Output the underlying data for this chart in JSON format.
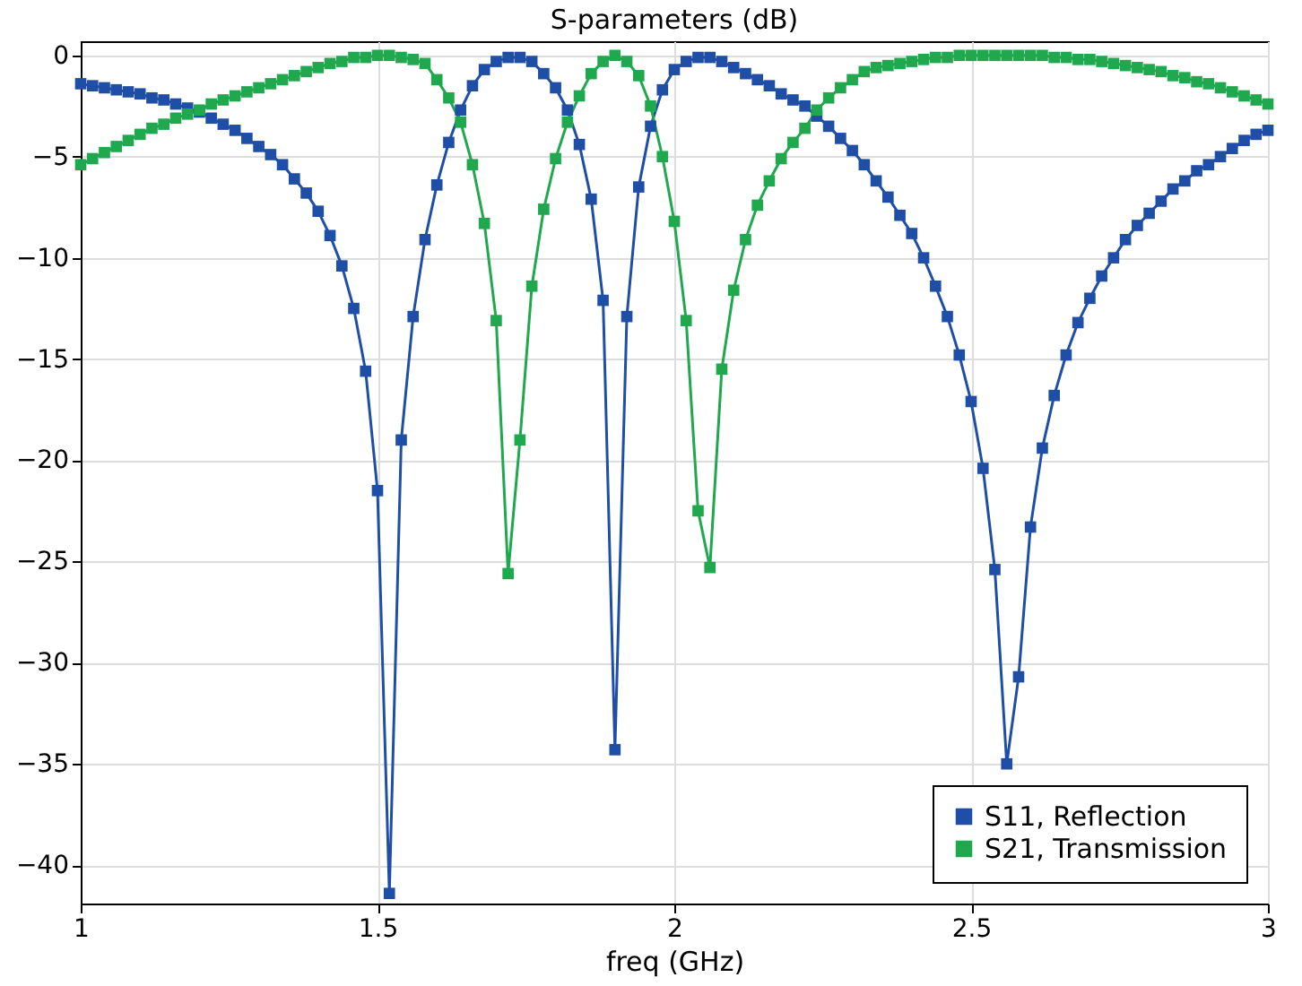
{
  "chart_data": {
    "type": "line",
    "title": "S-parameters (dB)",
    "xlabel": "freq (GHz)",
    "x": [
      1.0,
      1.02,
      1.04,
      1.06,
      1.08,
      1.1,
      1.12,
      1.14,
      1.16,
      1.18,
      1.2,
      1.22,
      1.24,
      1.26,
      1.28,
      1.3,
      1.32,
      1.34,
      1.36,
      1.38,
      1.4,
      1.42,
      1.44,
      1.46,
      1.48,
      1.5,
      1.52,
      1.54,
      1.56,
      1.58,
      1.6,
      1.62,
      1.64,
      1.66,
      1.68,
      1.7,
      1.72,
      1.74,
      1.76,
      1.78,
      1.8,
      1.82,
      1.84,
      1.86,
      1.88,
      1.9,
      1.92,
      1.94,
      1.96,
      1.98,
      2.0,
      2.02,
      2.04,
      2.06,
      2.08,
      2.1,
      2.12,
      2.14,
      2.16,
      2.18,
      2.2,
      2.22,
      2.24,
      2.26,
      2.28,
      2.3,
      2.32,
      2.34,
      2.36,
      2.38,
      2.4,
      2.42,
      2.44,
      2.46,
      2.48,
      2.5,
      2.52,
      2.54,
      2.56,
      2.58,
      2.6,
      2.62,
      2.64,
      2.66,
      2.68,
      2.7,
      2.72,
      2.74,
      2.76,
      2.78,
      2.8,
      2.82,
      2.84,
      2.86,
      2.88,
      2.9,
      2.92,
      2.94,
      2.96,
      2.98,
      3.0
    ],
    "series": [
      {
        "name": "S11, Reflection",
        "color": "#1f4ea6",
        "values": [
          -1.4,
          -1.5,
          -1.6,
          -1.7,
          -1.8,
          -1.9,
          -2.1,
          -2.2,
          -2.4,
          -2.6,
          -2.8,
          -3.1,
          -3.4,
          -3.7,
          -4.1,
          -4.5,
          -4.9,
          -5.4,
          -6.1,
          -6.8,
          -7.7,
          -8.9,
          -10.4,
          -12.5,
          -15.6,
          -21.5,
          -41.4,
          -19.0,
          -12.9,
          -9.1,
          -6.4,
          -4.3,
          -2.7,
          -1.5,
          -0.7,
          -0.3,
          -0.1,
          -0.1,
          -0.3,
          -0.9,
          -1.6,
          -2.7,
          -4.4,
          -7.1,
          -12.1,
          -34.3,
          -12.9,
          -6.5,
          -3.5,
          -1.7,
          -0.7,
          -0.3,
          -0.1,
          -0.1,
          -0.3,
          -0.6,
          -0.9,
          -1.2,
          -1.5,
          -1.9,
          -2.2,
          -2.5,
          -3.0,
          -3.5,
          -4.1,
          -4.7,
          -5.4,
          -6.2,
          -7.0,
          -7.9,
          -8.8,
          -10.0,
          -11.4,
          -12.9,
          -14.8,
          -17.1,
          -20.4,
          -25.4,
          -35.0,
          -30.7,
          -23.3,
          -19.4,
          -16.8,
          -14.8,
          -13.2,
          -12.0,
          -10.9,
          -10.0,
          -9.1,
          -8.4,
          -7.8,
          -7.2,
          -6.6,
          -6.2,
          -5.7,
          -5.4,
          -5.0,
          -4.6,
          -4.2,
          -3.9,
          -3.7
        ]
      },
      {
        "name": "S21, Transmission",
        "color": "#1fa84e",
        "values": [
          -5.4,
          -5.1,
          -4.8,
          -4.5,
          -4.2,
          -3.9,
          -3.6,
          -3.4,
          -3.1,
          -2.9,
          -2.7,
          -2.4,
          -2.2,
          -2.0,
          -1.8,
          -1.6,
          -1.4,
          -1.2,
          -1.0,
          -0.8,
          -0.6,
          -0.4,
          -0.3,
          -0.1,
          -0.1,
          0,
          0,
          -0.1,
          -0.2,
          -0.4,
          -1.2,
          -2.1,
          -3.3,
          -5.4,
          -8.3,
          -13.1,
          -25.6,
          -19.0,
          -11.4,
          -7.6,
          -5.1,
          -3.3,
          -2.0,
          -0.9,
          -0.3,
          0,
          -0.3,
          -1.0,
          -2.5,
          -5.0,
          -8.2,
          -13.1,
          -22.5,
          -25.3,
          -15.5,
          -11.6,
          -9.1,
          -7.4,
          -6.2,
          -5.1,
          -4.3,
          -3.6,
          -2.7,
          -2.1,
          -1.6,
          -1.2,
          -0.8,
          -0.6,
          -0.5,
          -0.4,
          -0.3,
          -0.2,
          -0.1,
          -0.1,
          0,
          0,
          0,
          0,
          0,
          0,
          0,
          0,
          -0.1,
          -0.1,
          -0.2,
          -0.2,
          -0.3,
          -0.4,
          -0.5,
          -0.6,
          -0.7,
          -0.8,
          -1.0,
          -1.1,
          -1.3,
          -1.4,
          -1.6,
          -1.8,
          -2.0,
          -2.2,
          -2.4
        ]
      }
    ],
    "xlim": [
      1,
      3
    ],
    "xticks": [
      1,
      1.5,
      2,
      2.5,
      3
    ],
    "ylim": [
      -41.9,
      0.7
    ],
    "yticks": [
      -40,
      -35,
      -30,
      -25,
      -20,
      -15,
      -10,
      -5,
      0
    ],
    "grid": true,
    "legend": "bottom right",
    "marker": "square",
    "line_style": "solid"
  }
}
